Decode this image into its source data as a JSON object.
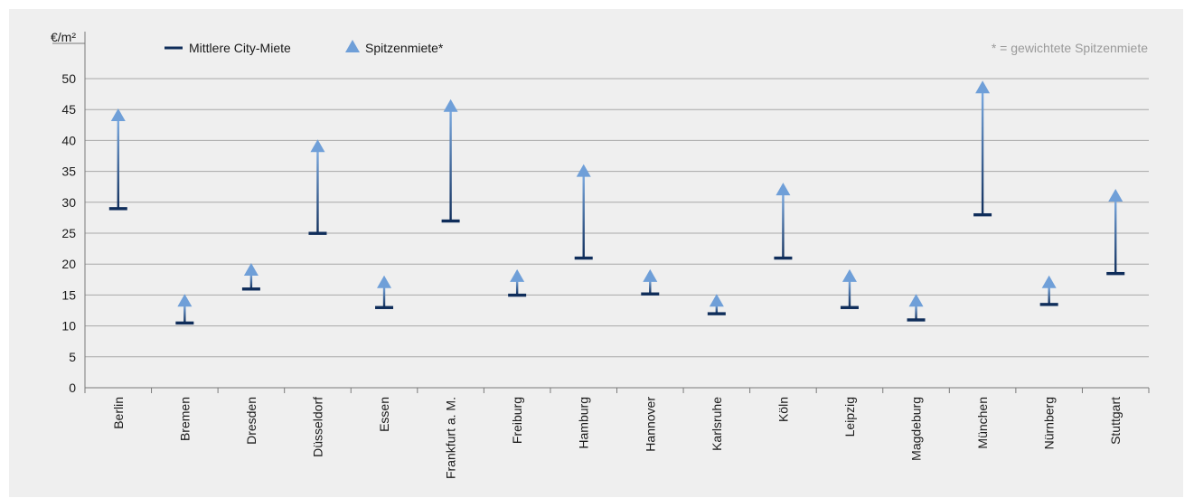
{
  "chart_data": {
    "type": "range-arrow",
    "unit_label": "€/m²",
    "note": "* = gewichtete Spitzenmiete",
    "ylim": [
      0,
      50
    ],
    "yticks": [
      0,
      5,
      10,
      15,
      20,
      25,
      30,
      35,
      40,
      45,
      50
    ],
    "grid": true,
    "legend_position": "top-left",
    "categories": [
      "Berlin",
      "Bremen",
      "Dresden",
      "Düsseldorf",
      "Essen",
      "Frankfurt a. M.",
      "Freiburg",
      "Hamburg",
      "Hannover",
      "Karlsruhe",
      "Köln",
      "Leipzig",
      "Magdeburg",
      "München",
      "Nürnberg",
      "Stuttgart"
    ],
    "series": [
      {
        "name": "Mittlere City-Miete",
        "color": "#0f2d5a",
        "marker": "bar",
        "values": [
          29,
          10.5,
          16,
          25,
          13,
          27,
          15,
          21,
          15.2,
          12,
          21,
          13,
          11,
          28,
          13.5,
          18.5
        ]
      },
      {
        "name": "Spitzenmiete*",
        "color": "#6f9fd8",
        "marker": "triangle",
        "values": [
          44,
          14,
          19,
          39,
          17,
          45.5,
          18,
          35,
          18,
          14,
          32,
          18,
          14,
          48.5,
          17,
          31
        ]
      }
    ]
  }
}
